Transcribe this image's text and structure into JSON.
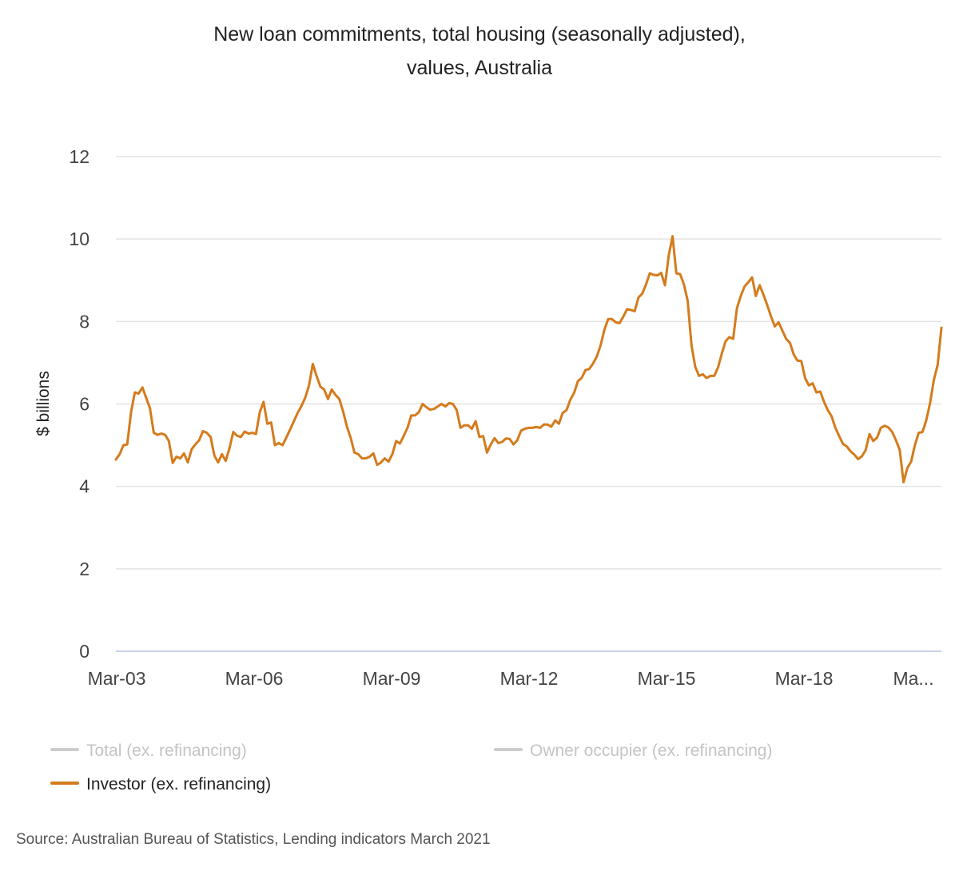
{
  "chart_data": {
    "type": "line",
    "title": "New loan commitments, total housing (seasonally adjusted),",
    "subtitle": "values, Australia",
    "ylabel": "$ billions",
    "xlabel": "",
    "ylim": [
      0,
      12
    ],
    "yticks": [
      "0",
      "2",
      "4",
      "6",
      "8",
      "10",
      "12"
    ],
    "xticks": [
      "Mar-03",
      "Mar-06",
      "Mar-09",
      "Mar-12",
      "Mar-15",
      "Mar-18",
      "Ma..."
    ],
    "grid": true,
    "legend_position": "bottom",
    "x_start": "Mar-03",
    "x_end": "Mar-21",
    "series": [
      {
        "name": "Total (ex. refinancing)",
        "visible": false,
        "color": "#cccccc",
        "values": []
      },
      {
        "name": "Owner occupier (ex. refinancing)",
        "visible": false,
        "color": "#cccccc",
        "values": []
      },
      {
        "name": "Investor (ex. refinancing)",
        "visible": true,
        "color": "#d47b1c",
        "values": [
          4.65,
          4.78,
          5.0,
          5.02,
          5.8,
          6.28,
          6.25,
          6.4,
          6.15,
          5.9,
          5.3,
          5.25,
          5.28,
          5.25,
          5.1,
          4.57,
          4.72,
          4.68,
          4.8,
          4.58,
          4.9,
          5.02,
          5.12,
          5.34,
          5.3,
          5.2,
          4.75,
          4.58,
          4.78,
          4.62,
          4.93,
          5.32,
          5.23,
          5.2,
          5.33,
          5.28,
          5.3,
          5.27,
          5.8,
          6.05,
          5.52,
          5.55,
          5.0,
          5.05,
          5.0,
          5.18,
          5.38,
          5.58,
          5.78,
          5.95,
          6.15,
          6.45,
          6.97,
          6.68,
          6.42,
          6.35,
          6.12,
          6.35,
          6.22,
          6.12,
          5.82,
          5.45,
          5.18,
          4.82,
          4.78,
          4.68,
          4.68,
          4.72,
          4.8,
          4.52,
          4.58,
          4.68,
          4.6,
          4.78,
          5.1,
          5.04,
          5.22,
          5.42,
          5.72,
          5.72,
          5.8,
          6.0,
          5.92,
          5.86,
          5.88,
          5.94,
          6.0,
          5.94,
          6.02,
          6.0,
          5.85,
          5.42,
          5.48,
          5.48,
          5.4,
          5.58,
          5.2,
          5.22,
          4.82,
          5.02,
          5.17,
          5.05,
          5.08,
          5.16,
          5.15,
          5.02,
          5.12,
          5.35,
          5.4,
          5.42,
          5.42,
          5.44,
          5.42,
          5.5,
          5.5,
          5.45,
          5.6,
          5.52,
          5.78,
          5.85,
          6.1,
          6.27,
          6.55,
          6.63,
          6.82,
          6.85,
          6.98,
          7.15,
          7.42,
          7.8,
          8.06,
          8.06,
          7.98,
          7.96,
          8.12,
          8.3,
          8.28,
          8.25,
          8.58,
          8.68,
          8.9,
          9.17,
          9.13,
          9.12,
          9.18,
          8.88,
          9.6,
          10.07,
          9.17,
          9.15,
          8.9,
          8.5,
          7.42,
          6.9,
          6.68,
          6.72,
          6.63,
          6.68,
          6.68,
          6.88,
          7.22,
          7.52,
          7.62,
          7.58,
          8.32,
          8.62,
          8.85,
          8.95,
          9.07,
          8.62,
          8.88,
          8.65,
          8.4,
          8.12,
          7.88,
          7.98,
          7.78,
          7.58,
          7.48,
          7.2,
          7.05,
          7.04,
          6.63,
          6.45,
          6.5,
          6.28,
          6.3,
          6.05,
          5.85,
          5.7,
          5.42,
          5.22,
          5.03,
          4.97,
          4.85,
          4.77,
          4.66,
          4.73,
          4.88,
          5.27,
          5.1,
          5.18,
          5.42,
          5.47,
          5.43,
          5.32,
          5.12,
          4.88,
          4.1,
          4.45,
          4.6,
          5.0,
          5.3,
          5.32,
          5.6,
          6.02,
          6.58,
          6.95,
          7.85
        ]
      }
    ]
  },
  "source": "Source: Australian Bureau of Statistics, Lending indicators March 2021"
}
